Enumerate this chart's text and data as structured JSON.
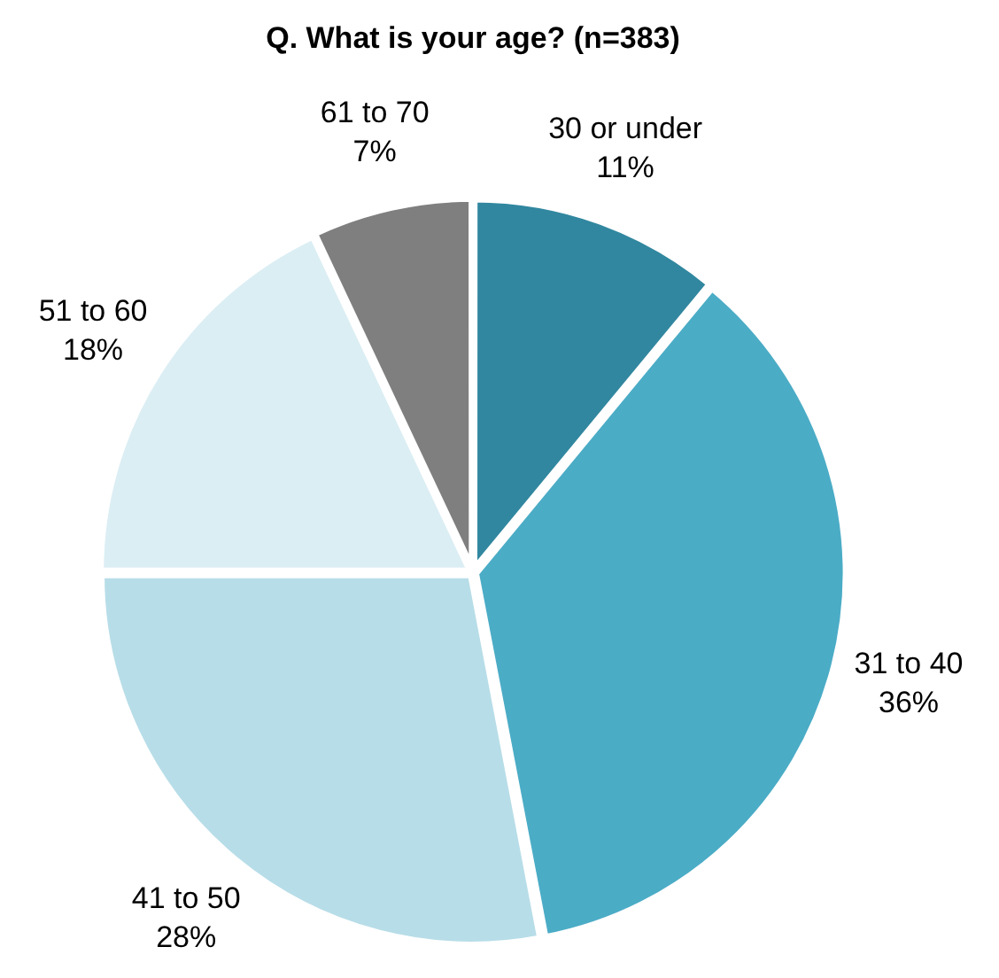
{
  "chart_data": {
    "type": "pie",
    "title": "Q. What is your age? (n=383)",
    "categories": [
      "30 or under",
      "31 to 40",
      "41 to 50",
      "51 to 60",
      "61 to 70"
    ],
    "values": [
      11,
      36,
      28,
      18,
      7
    ],
    "value_labels": [
      "11%",
      "36%",
      "28%",
      "18%",
      "7%"
    ],
    "colors": [
      "#31879f",
      "#4bacc6",
      "#b7dde8",
      "#dbeef4",
      "#7f7f7f"
    ],
    "legend": false
  }
}
